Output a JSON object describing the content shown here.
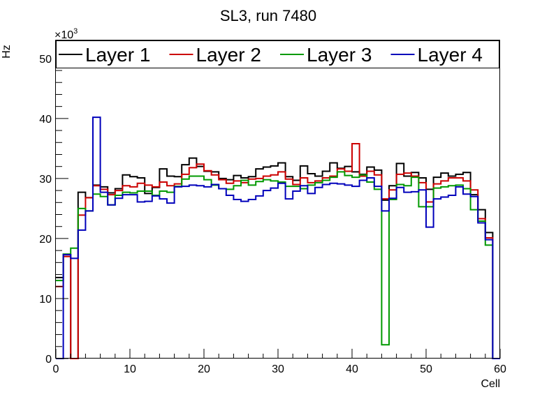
{
  "chart_data": {
    "type": "step-histogram",
    "title": "SL3, run 7480",
    "xlabel": "Cell",
    "ylabel": "Hz",
    "y_exponent_label": "×10",
    "y_exponent_power": "3",
    "xlim": [
      0,
      60
    ],
    "ylim": [
      0,
      53
    ],
    "x_ticks": [
      "0",
      "10",
      "20",
      "30",
      "40",
      "50",
      "60"
    ],
    "y_ticks": [
      "0",
      "10",
      "20",
      "30",
      "40",
      "50"
    ],
    "legend_position": "top",
    "bin_edges_start": 0,
    "bin_width": 1,
    "series": [
      {
        "name": "Layer 1",
        "color": "#000000",
        "values": [
          13.5,
          17.3,
          0,
          27.7,
          26.8,
          28.9,
          28.6,
          27.6,
          28.3,
          30.6,
          30.3,
          30.1,
          27.5,
          28.5,
          31.6,
          30.4,
          30.3,
          32.3,
          33.4,
          32.0,
          31.2,
          31.1,
          30.0,
          29.8,
          30.5,
          30.1,
          30.3,
          31.6,
          31.9,
          32.1,
          32.6,
          30.3,
          29.7,
          32.1,
          30.8,
          30.4,
          31.2,
          32.6,
          31.7,
          32.0,
          31.1,
          30.7,
          31.9,
          31.4,
          26.4,
          28.8,
          32.5,
          30.4,
          31.0,
          30.1,
          28.2,
          30.2,
          30.9,
          30.4,
          30.7,
          31.0,
          27.3,
          24.8,
          21.0,
          0
        ]
      },
      {
        "name": "Layer 2",
        "color": "#cc0000",
        "values": [
          12.0,
          17.0,
          0,
          23.9,
          26.8,
          28.8,
          28.2,
          27.3,
          28.0,
          28.8,
          28.6,
          29.2,
          28.9,
          28.6,
          29.4,
          28.8,
          29.1,
          30.7,
          31.8,
          32.4,
          31.3,
          30.6,
          29.8,
          29.2,
          29.6,
          29.3,
          29.9,
          30.0,
          30.4,
          30.6,
          31.1,
          29.9,
          29.0,
          30.1,
          29.3,
          29.6,
          30.1,
          30.4,
          31.6,
          31.2,
          35.8,
          30.4,
          31.2,
          30.6,
          26.6,
          28.1,
          30.7,
          30.9,
          30.4,
          29.3,
          26.1,
          29.1,
          29.6,
          30.1,
          30.1,
          29.6,
          28.1,
          23.3,
          20.1,
          0
        ]
      },
      {
        "name": "Layer 3",
        "color": "#009900",
        "values": [
          13.0,
          17.4,
          18.4,
          25.0,
          24.6,
          27.4,
          27.0,
          25.6,
          27.2,
          27.7,
          27.6,
          27.9,
          27.9,
          27.2,
          27.9,
          27.7,
          28.7,
          29.9,
          30.4,
          30.4,
          29.8,
          28.9,
          28.3,
          28.2,
          28.8,
          29.7,
          28.9,
          29.5,
          29.8,
          29.6,
          29.4,
          28.7,
          28.7,
          28.3,
          28.9,
          29.3,
          29.7,
          30.2,
          31.1,
          30.5,
          30.2,
          30.6,
          29.4,
          28.2,
          2.3,
          26.5,
          29.0,
          28.8,
          30.2,
          25.3,
          25.3,
          28.4,
          28.6,
          28.8,
          28.9,
          28.3,
          24.8,
          22.9,
          18.9,
          0
        ]
      },
      {
        "name": "Layer 4",
        "color": "#0000bb",
        "values": [
          0,
          17.3,
          16.7,
          21.4,
          24.6,
          40.2,
          27.7,
          25.6,
          26.7,
          27.3,
          27.3,
          26.1,
          26.2,
          27.1,
          26.6,
          25.9,
          28.6,
          28.7,
          28.9,
          28.8,
          28.6,
          29.0,
          28.3,
          27.2,
          26.5,
          26.2,
          26.5,
          27.1,
          28.0,
          28.4,
          29.2,
          26.6,
          27.9,
          28.8,
          27.5,
          28.5,
          29.0,
          29.2,
          29.1,
          28.9,
          28.7,
          29.7,
          30.1,
          28.7,
          24.6,
          26.7,
          28.5,
          27.7,
          27.8,
          28.1,
          21.9,
          26.6,
          26.9,
          27.2,
          28.6,
          27.4,
          27.0,
          22.6,
          19.8,
          0
        ]
      }
    ]
  }
}
